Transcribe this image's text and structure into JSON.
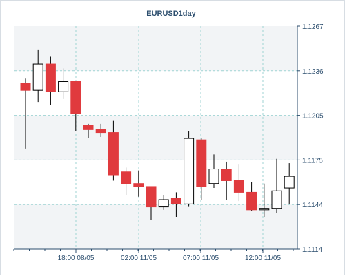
{
  "colors": {
    "bull_fill": "#ffffff",
    "bear_fill": "#e03a3e",
    "candle_outline": "#000000",
    "grid": "#9fd3d3",
    "axis": "#2c4e6e",
    "band": "#f2f4f6"
  },
  "chart_data": {
    "type": "candlestick",
    "title": "EURUSD1day",
    "ylim": [
      1.1114,
      1.1267
    ],
    "yticks": [
      "1.1267",
      "1.1236",
      "1.1205",
      "1.1175",
      "1.1144",
      "1.1114"
    ],
    "xticks": [
      "18:00 08/05",
      "02:00 11/05",
      "07:00 11/05",
      "12:00 11/05"
    ],
    "grid": true,
    "candles": [
      {
        "o": 1.1228,
        "h": 1.1231,
        "l": 1.1183,
        "c": 1.1223
      },
      {
        "o": 1.1223,
        "h": 1.1251,
        "l": 1.1215,
        "c": 1.1241
      },
      {
        "o": 1.1241,
        "h": 1.1246,
        "l": 1.1213,
        "c": 1.1222
      },
      {
        "o": 1.1222,
        "h": 1.1238,
        "l": 1.1217,
        "c": 1.1229
      },
      {
        "o": 1.1229,
        "h": 1.1229,
        "l": 1.1195,
        "c": 1.1207
      },
      {
        "o": 1.1199,
        "h": 1.12,
        "l": 1.119,
        "c": 1.1196
      },
      {
        "o": 1.1196,
        "h": 1.12,
        "l": 1.1191,
        "c": 1.1194
      },
      {
        "o": 1.1194,
        "h": 1.1202,
        "l": 1.1161,
        "c": 1.1165
      },
      {
        "o": 1.1167,
        "h": 1.117,
        "l": 1.1151,
        "c": 1.1159
      },
      {
        "o": 1.1159,
        "h": 1.1168,
        "l": 1.115,
        "c": 1.1157
      },
      {
        "o": 1.1157,
        "h": 1.1157,
        "l": 1.1134,
        "c": 1.1143
      },
      {
        "o": 1.1143,
        "h": 1.1151,
        "l": 1.1141,
        "c": 1.1148
      },
      {
        "o": 1.1149,
        "h": 1.1153,
        "l": 1.1136,
        "c": 1.1145
      },
      {
        "o": 1.1145,
        "h": 1.1195,
        "l": 1.1143,
        "c": 1.119
      },
      {
        "o": 1.1189,
        "h": 1.119,
        "l": 1.1148,
        "c": 1.1157
      },
      {
        "o": 1.1159,
        "h": 1.1179,
        "l": 1.1156,
        "c": 1.1169
      },
      {
        "o": 1.1169,
        "h": 1.1174,
        "l": 1.1148,
        "c": 1.1161
      },
      {
        "o": 1.1161,
        "h": 1.1172,
        "l": 1.1147,
        "c": 1.1153
      },
      {
        "o": 1.1153,
        "h": 1.116,
        "l": 1.114,
        "c": 1.1141
      },
      {
        "o": 1.1141,
        "h": 1.1159,
        "l": 1.1136,
        "c": 1.1142
      },
      {
        "o": 1.1142,
        "h": 1.1176,
        "l": 1.1139,
        "c": 1.1154
      },
      {
        "o": 1.1156,
        "h": 1.1173,
        "l": 1.1145,
        "c": 1.1164
      }
    ]
  }
}
